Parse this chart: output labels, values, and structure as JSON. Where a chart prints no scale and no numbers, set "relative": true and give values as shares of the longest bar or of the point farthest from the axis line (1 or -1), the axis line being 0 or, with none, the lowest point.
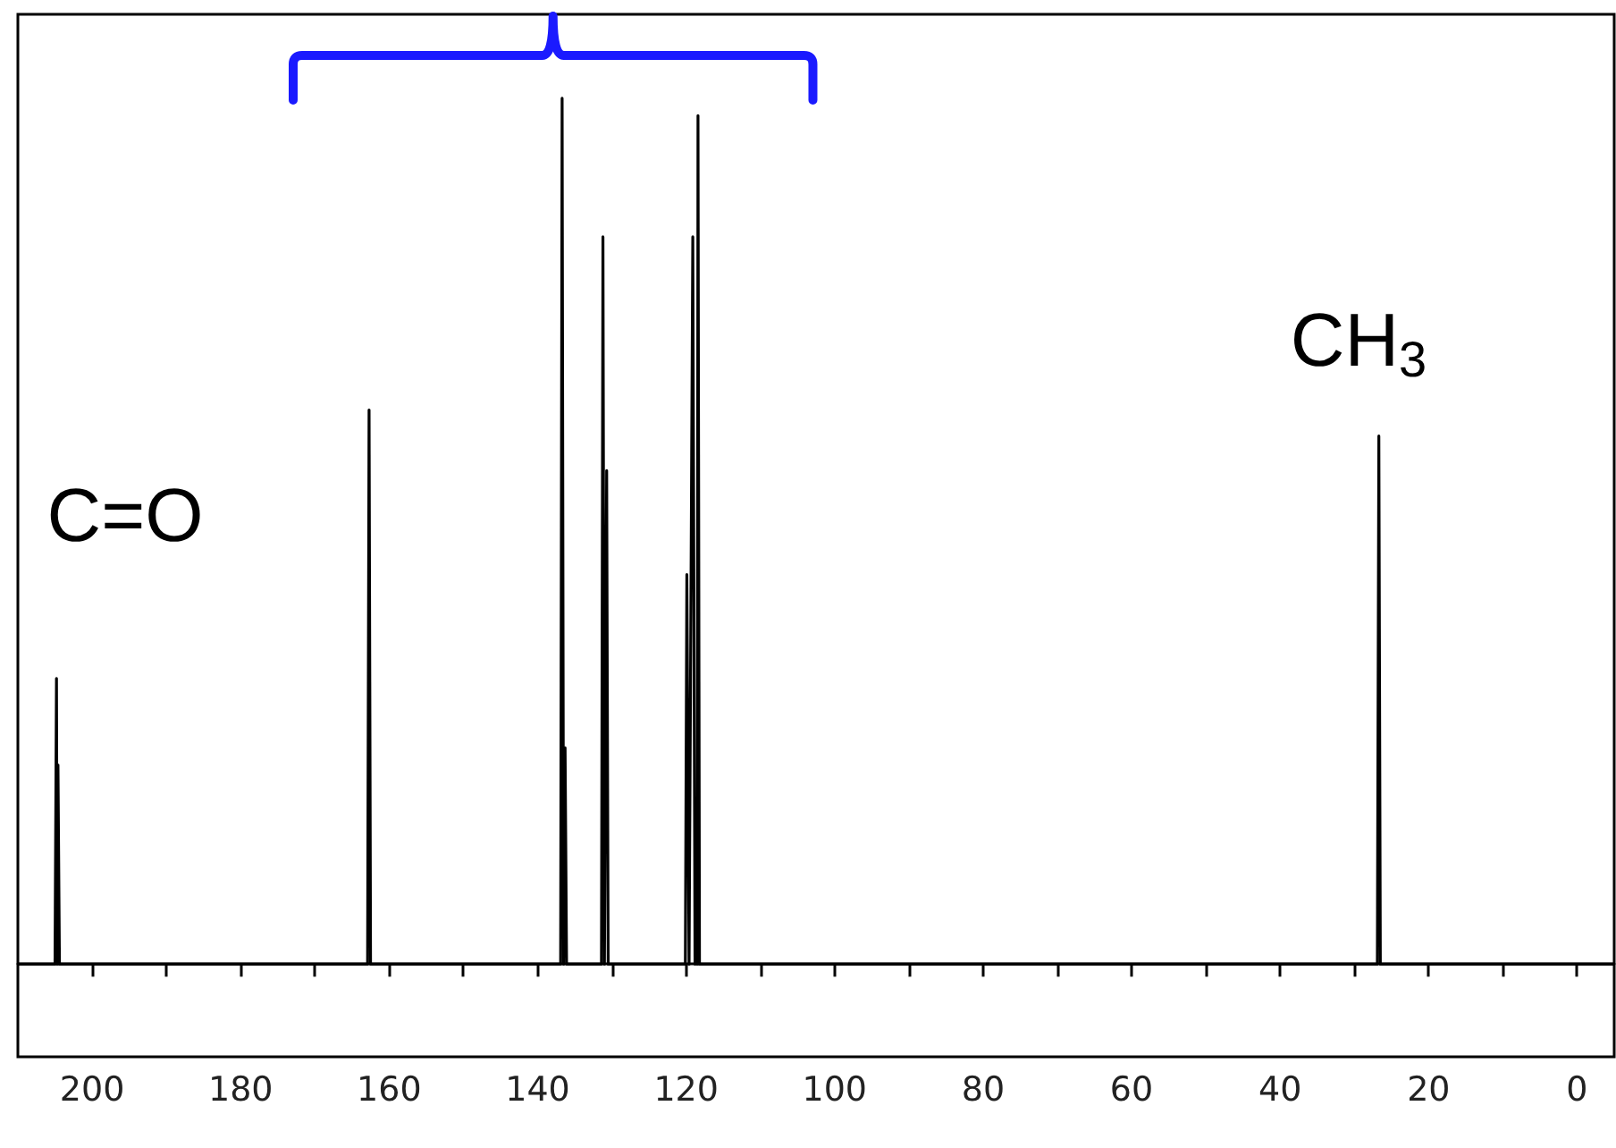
{
  "chart_data": {
    "type": "line",
    "relative": true,
    "xlim": [
      210,
      -5
    ],
    "xticks": [
      200,
      {
        "value": 190,
        "label": null
      },
      180,
      {
        "value": 170,
        "label": null
      },
      160,
      {
        "value": 150,
        "label": null
      },
      140,
      {
        "value": 130,
        "label": null
      },
      120,
      {
        "value": 110,
        "label": null
      },
      100,
      {
        "value": 90,
        "label": null
      },
      80,
      {
        "value": 70,
        "label": null
      },
      60,
      {
        "value": 50,
        "label": null
      },
      40,
      {
        "value": 30,
        "label": null
      },
      20,
      {
        "value": 10,
        "label": null
      },
      0
    ],
    "series": [
      {
        "color": "#000000",
        "x": [
          210,
          205.0,
          204.8,
          204.7,
          204.6,
          204.4,
          162.9,
          162.7,
          162.5,
          136.9,
          136.7,
          136.5,
          136.3,
          136.1,
          131.4,
          131.2,
          131.0,
          130.7,
          130.5,
          120.1,
          119.9,
          119.6,
          119.1,
          118.8,
          118.6,
          118.5,
          118.4,
          118.2,
          26.9,
          26.7,
          26.5,
          -5
        ],
        "values": [
          0,
          0,
          0.33,
          0,
          0.23,
          0,
          0,
          0.64,
          0,
          0,
          1.0,
          0,
          0.25,
          0,
          0,
          0.84,
          0,
          0.57,
          0,
          0,
          0.45,
          0,
          0.84,
          0,
          0.05,
          0,
          0.98,
          0,
          0,
          0.61,
          0,
          0
        ]
      }
    ],
    "annotations": [
      "C=O",
      "CH$_{3}$"
    ],
    "grid": false,
    "marker": "none",
    "line_style": "solid"
  }
}
